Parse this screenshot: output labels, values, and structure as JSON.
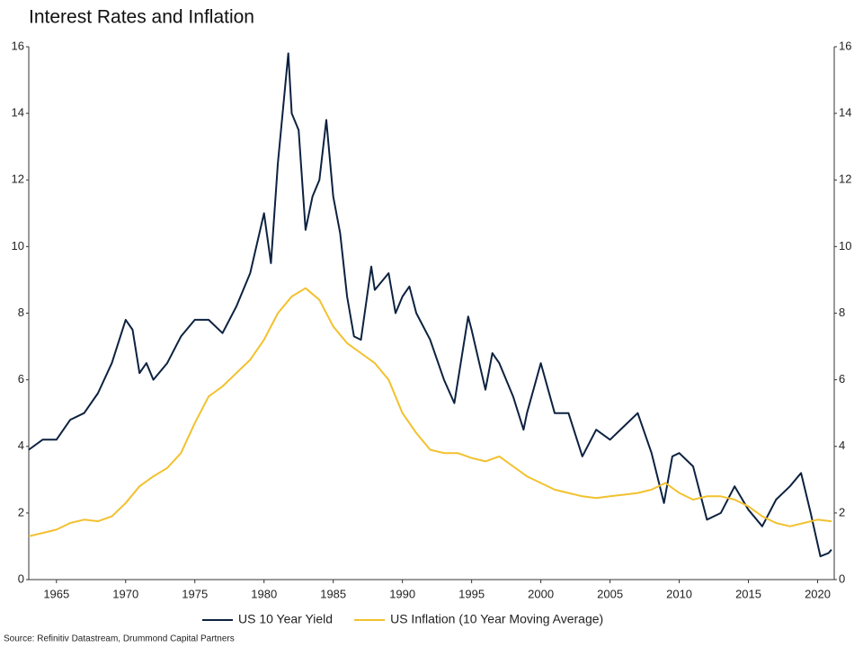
{
  "chart_data": {
    "type": "line",
    "title": "Interest Rates and Inflation",
    "source": "Source: Refinitiv Datastream, Drummond Capital Partners",
    "xlim": [
      1963,
      2021.2
    ],
    "xticks": [
      1965,
      1970,
      1975,
      1980,
      1985,
      1990,
      1995,
      2000,
      2005,
      2010,
      2015,
      2020
    ],
    "ylim": [
      0,
      16
    ],
    "yticks": [
      0,
      2,
      4,
      6,
      8,
      10,
      12,
      14,
      16
    ],
    "y2lim": [
      0,
      16
    ],
    "y2ticks": [
      0,
      2,
      4,
      6,
      8,
      10,
      12,
      14,
      16
    ],
    "legend": "bottom",
    "series": [
      {
        "name": "US 10 Year Yield",
        "color": "#0d2240",
        "x": [
          1963,
          1964,
          1965,
          1966,
          1967,
          1968,
          1969,
          1970,
          1970.5,
          1971,
          1971.5,
          1972,
          1973,
          1974,
          1975,
          1976,
          1977,
          1978,
          1979,
          1980,
          1980.5,
          1981,
          1981.75,
          1982,
          1982.5,
          1983,
          1983.5,
          1984,
          1984.5,
          1985,
          1985.5,
          1986,
          1986.5,
          1987,
          1987.75,
          1988,
          1989,
          1989.5,
          1990,
          1990.5,
          1991,
          1992,
          1993,
          1993.75,
          1994.75,
          1995,
          1996,
          1996.5,
          1997,
          1998,
          1998.75,
          1999,
          2000,
          2001,
          2002,
          2003,
          2004,
          2005,
          2006,
          2007,
          2008,
          2008.9,
          2009.5,
          2010,
          2011,
          2012,
          2013,
          2014,
          2015,
          2016,
          2017,
          2018,
          2018.8,
          2019.5,
          2020.2,
          2020.8,
          2021
        ],
        "values": [
          3.9,
          4.2,
          4.2,
          4.8,
          5.0,
          5.6,
          6.5,
          7.8,
          7.5,
          6.2,
          6.5,
          6.0,
          6.5,
          7.3,
          7.8,
          7.8,
          7.4,
          8.2,
          9.2,
          11.0,
          9.5,
          12.5,
          15.8,
          14.0,
          13.5,
          10.5,
          11.5,
          12.0,
          13.8,
          11.5,
          10.4,
          8.5,
          7.3,
          7.2,
          9.4,
          8.7,
          9.2,
          8.0,
          8.5,
          8.8,
          8.0,
          7.2,
          6.0,
          5.3,
          7.9,
          7.5,
          5.7,
          6.8,
          6.5,
          5.5,
          4.5,
          5.0,
          6.5,
          5.0,
          5.0,
          3.7,
          4.5,
          4.2,
          4.6,
          5.0,
          3.8,
          2.3,
          3.7,
          3.8,
          3.4,
          1.8,
          2.0,
          2.8,
          2.1,
          1.6,
          2.4,
          2.8,
          3.2,
          2.0,
          0.7,
          0.8,
          0.9
        ]
      },
      {
        "name": "US Inflation (10 Year Moving Average)",
        "color": "#f2c12e",
        "axis": "y2",
        "x": [
          1963,
          1964,
          1965,
          1966,
          1967,
          1968,
          1969,
          1970,
          1971,
          1972,
          1973,
          1974,
          1975,
          1976,
          1977,
          1978,
          1979,
          1980,
          1981,
          1982,
          1983,
          1984,
          1985,
          1986,
          1987,
          1988,
          1989,
          1990,
          1991,
          1992,
          1993,
          1994,
          1995,
          1996,
          1997,
          1998,
          1999,
          2000,
          2001,
          2002,
          2003,
          2004,
          2005,
          2006,
          2007,
          2008,
          2009,
          2010,
          2011,
          2012,
          2013,
          2014,
          2015,
          2016,
          2017,
          2018,
          2019,
          2020,
          2021
        ],
        "values": [
          1.3,
          1.4,
          1.5,
          1.7,
          1.8,
          1.75,
          1.9,
          2.3,
          2.8,
          3.1,
          3.35,
          3.8,
          4.7,
          5.5,
          5.8,
          6.2,
          6.6,
          7.2,
          8.0,
          8.5,
          8.75,
          8.4,
          7.6,
          7.1,
          6.8,
          6.5,
          6.0,
          5.0,
          4.4,
          3.9,
          3.8,
          3.8,
          3.65,
          3.55,
          3.7,
          3.4,
          3.1,
          2.9,
          2.7,
          2.6,
          2.5,
          2.45,
          2.5,
          2.55,
          2.6,
          2.7,
          2.9,
          2.6,
          2.4,
          2.5,
          2.5,
          2.4,
          2.2,
          1.9,
          1.7,
          1.6,
          1.7,
          1.8,
          1.75
        ]
      }
    ]
  }
}
